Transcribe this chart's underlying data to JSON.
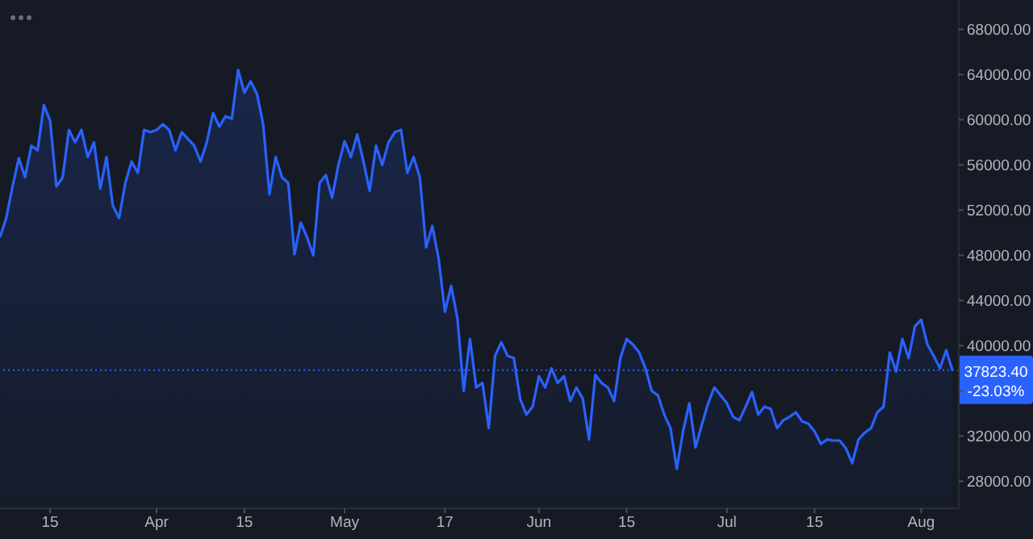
{
  "chart_data": {
    "type": "area",
    "x": [
      "--03-07",
      "--03-08",
      "--03-09",
      "--03-10",
      "--03-11",
      "--03-12",
      "--03-13",
      "--03-14",
      "--03-15",
      "--03-16",
      "--03-17",
      "--03-18",
      "--03-19",
      "--03-20",
      "--03-21",
      "--03-22",
      "--03-23",
      "--03-24",
      "--03-25",
      "--03-26",
      "--03-27",
      "--03-28",
      "--03-29",
      "--03-30",
      "--03-31",
      "--04-01",
      "--04-02",
      "--04-03",
      "--04-04",
      "--04-05",
      "--04-06",
      "--04-07",
      "--04-08",
      "--04-09",
      "--04-10",
      "--04-11",
      "--04-12",
      "--04-13",
      "--04-14",
      "--04-15",
      "--04-16",
      "--04-17",
      "--04-18",
      "--04-19",
      "--04-20",
      "--04-21",
      "--04-22",
      "--04-23",
      "--04-24",
      "--04-25",
      "--04-26",
      "--04-27",
      "--04-28",
      "--04-29",
      "--04-30",
      "--05-01",
      "--05-02",
      "--05-03",
      "--05-04",
      "--05-05",
      "--05-06",
      "--05-07",
      "--05-08",
      "--05-09",
      "--05-10",
      "--05-11",
      "--05-12",
      "--05-13",
      "--05-14",
      "--05-15",
      "--05-16",
      "--05-17",
      "--05-18",
      "--05-19",
      "--05-20",
      "--05-21",
      "--05-22",
      "--05-23",
      "--05-24",
      "--05-25",
      "--05-26",
      "--05-27",
      "--05-28",
      "--05-29",
      "--05-30",
      "--05-31",
      "--06-01",
      "--06-02",
      "--06-03",
      "--06-04",
      "--06-05",
      "--06-06",
      "--06-07",
      "--06-08",
      "--06-09",
      "--06-10",
      "--06-11",
      "--06-12",
      "--06-13",
      "--06-14",
      "--06-15",
      "--06-16",
      "--06-17",
      "--06-18",
      "--06-19",
      "--06-20",
      "--06-21",
      "--06-22",
      "--06-23",
      "--06-24",
      "--06-25",
      "--06-26",
      "--06-27",
      "--06-28",
      "--06-29",
      "--06-30",
      "--07-01",
      "--07-02",
      "--07-03",
      "--07-04",
      "--07-05",
      "--07-06",
      "--07-07",
      "--07-08",
      "--07-09",
      "--07-10",
      "--07-11",
      "--07-12",
      "--07-13",
      "--07-14",
      "--07-15",
      "--07-16",
      "--07-17",
      "--07-18",
      "--07-19",
      "--07-20",
      "--07-21",
      "--07-22",
      "--07-23",
      "--07-24",
      "--07-25",
      "--07-26",
      "--07-27",
      "--07-28",
      "--07-29",
      "--07-30",
      "--07-31",
      "--08-01",
      "--08-02",
      "--08-03",
      "--08-04",
      "--08-05",
      "--08-06"
    ],
    "series": [
      {
        "color": "#2962ff",
        "values": [
          49600,
          51300,
          54100,
          56600,
          54900,
          57700,
          57300,
          61300,
          59900,
          54100,
          54900,
          59100,
          58000,
          59100,
          56700,
          58000,
          53900,
          56700,
          52400,
          51300,
          54400,
          56300,
          55300,
          59100,
          58900,
          59100,
          59600,
          59100,
          57300,
          58900,
          58300,
          57700,
          56300,
          58000,
          60600,
          59400,
          60300,
          60100,
          64400,
          62400,
          63400,
          62300,
          59600,
          53400,
          56700,
          54900,
          54400,
          48100,
          50900,
          49600,
          48000,
          54400,
          55100,
          53100,
          56000,
          58100,
          56700,
          58700,
          56300,
          53700,
          57700,
          56000,
          58000,
          58900,
          59100,
          55300,
          56700,
          54900,
          48700,
          50600,
          47700,
          43000,
          45300,
          42400,
          36000,
          40600,
          36300,
          36700,
          32700,
          39100,
          40300,
          39100,
          38900,
          35300,
          33900,
          34600,
          37300,
          36300,
          38000,
          36700,
          37300,
          35100,
          36300,
          35300,
          31700,
          37400,
          36700,
          36300,
          35100,
          38900,
          40600,
          40100,
          39400,
          38000,
          36000,
          35600,
          33900,
          32700,
          29100,
          32400,
          34900,
          31000,
          33000,
          34900,
          36300,
          35600,
          34900,
          33700,
          33400,
          34600,
          35900,
          33900,
          34600,
          34400,
          32700,
          33400,
          33700,
          34100,
          33300,
          33100,
          32400,
          31300,
          31700,
          31600,
          31600,
          30900,
          29600,
          31700,
          32300,
          32700,
          34100,
          34600,
          39400,
          37700,
          40600,
          38900,
          41700,
          42300,
          40100,
          39100,
          38000,
          39600,
          37800
        ]
      }
    ],
    "xlim": [
      "--03-07",
      "--08-07"
    ],
    "xticks": [
      {
        "value": "--03-15",
        "label": "15"
      },
      {
        "value": "--04-01",
        "label": "Apr"
      },
      {
        "value": "--04-15",
        "label": "15"
      },
      {
        "value": "--05-01",
        "label": "May"
      },
      {
        "value": "--05-17",
        "label": "17"
      },
      {
        "value": "--06-01",
        "label": "Jun"
      },
      {
        "value": "--06-15",
        "label": "15"
      },
      {
        "value": "--07-01",
        "label": "Jul"
      },
      {
        "value": "--07-15",
        "label": "15"
      },
      {
        "value": "--08-01",
        "label": "Aug"
      }
    ],
    "ylim": [
      25600,
      70600
    ],
    "yticks": [
      {
        "value": 28000,
        "label": "28000.00"
      },
      {
        "value": 32000,
        "label": "32000.00"
      },
      {
        "value": 36000,
        "label": null
      },
      {
        "value": 40000,
        "label": "40000.00"
      },
      {
        "value": 44000,
        "label": "44000.00"
      },
      {
        "value": 48000,
        "label": "48000.00"
      },
      {
        "value": 52000,
        "label": "52000.00"
      },
      {
        "value": 56000,
        "label": "56000.00"
      },
      {
        "value": 60000,
        "label": "60000.00"
      },
      {
        "value": 64000,
        "label": "64000.00"
      },
      {
        "value": 68000,
        "label": "68000.00"
      }
    ],
    "ref_lines": [
      {
        "axis": "y",
        "value": 37823.4,
        "label": "37823.40",
        "color": "#2962ff",
        "line_style": "dotted"
      }
    ],
    "annotations": [
      "-23.03%"
    ],
    "grid": false,
    "legend": false
  }
}
